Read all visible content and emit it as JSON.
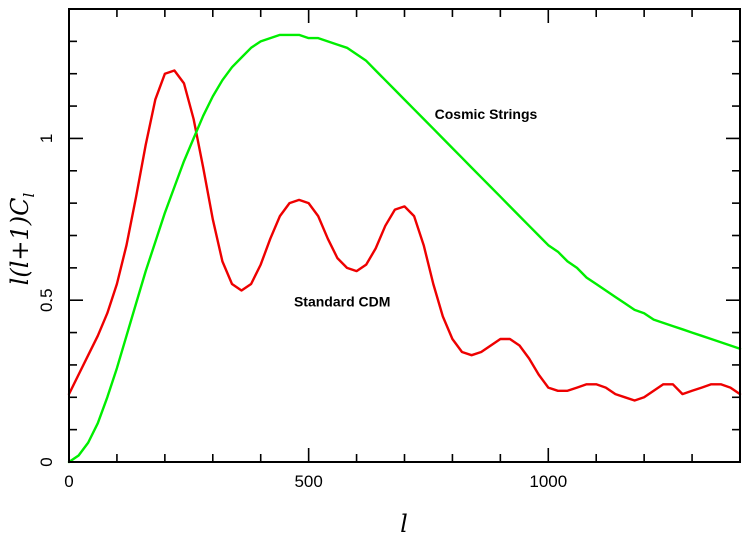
{
  "chart_data": {
    "type": "line",
    "title": "",
    "xlabel": "l",
    "ylabel": "l(l+1)C_l",
    "xlim": [
      0,
      1400
    ],
    "ylim": [
      0,
      1.4
    ],
    "x_ticks": [
      0,
      500,
      1000
    ],
    "x_tick_labels": [
      "0",
      "500",
      "1000"
    ],
    "x_minor_step": 100,
    "y_ticks": [
      0,
      0.5,
      1
    ],
    "y_tick_labels": [
      "0",
      "0.5",
      "1"
    ],
    "y_minor_step": 0.1,
    "grid": false,
    "legend": "none",
    "series": [
      {
        "color": "#ee0000",
        "x": [
          0,
          20,
          40,
          60,
          80,
          100,
          120,
          140,
          160,
          180,
          200,
          220,
          240,
          260,
          280,
          300,
          320,
          340,
          360,
          380,
          400,
          420,
          440,
          460,
          480,
          500,
          520,
          540,
          560,
          580,
          600,
          620,
          640,
          660,
          680,
          700,
          720,
          740,
          760,
          780,
          800,
          820,
          840,
          860,
          880,
          900,
          920,
          940,
          960,
          980,
          1000,
          1020,
          1040,
          1060,
          1080,
          1100,
          1120,
          1140,
          1160,
          1180,
          1200,
          1220,
          1240,
          1260,
          1280,
          1300,
          1320,
          1340,
          1360,
          1380,
          1400
        ],
        "y": [
          0.21,
          0.27,
          0.33,
          0.39,
          0.46,
          0.55,
          0.67,
          0.82,
          0.98,
          1.12,
          1.2,
          1.21,
          1.17,
          1.06,
          0.91,
          0.75,
          0.62,
          0.55,
          0.53,
          0.55,
          0.61,
          0.69,
          0.76,
          0.8,
          0.81,
          0.8,
          0.76,
          0.69,
          0.63,
          0.6,
          0.59,
          0.61,
          0.66,
          0.73,
          0.78,
          0.79,
          0.76,
          0.67,
          0.55,
          0.45,
          0.38,
          0.34,
          0.33,
          0.34,
          0.36,
          0.38,
          0.38,
          0.36,
          0.32,
          0.27,
          0.23,
          0.22,
          0.22,
          0.23,
          0.24,
          0.24,
          0.23,
          0.21,
          0.2,
          0.19,
          0.2,
          0.22,
          0.24,
          0.24,
          0.21,
          0.22,
          0.23,
          0.24,
          0.24,
          0.23,
          0.21
        ]
      },
      {
        "color": "#00ee00",
        "x": [
          0,
          20,
          40,
          60,
          80,
          100,
          120,
          140,
          160,
          180,
          200,
          220,
          240,
          260,
          280,
          300,
          320,
          340,
          360,
          380,
          400,
          420,
          440,
          460,
          480,
          500,
          520,
          540,
          560,
          580,
          600,
          620,
          640,
          660,
          680,
          700,
          720,
          740,
          760,
          780,
          800,
          820,
          840,
          860,
          880,
          900,
          920,
          940,
          960,
          980,
          1000,
          1020,
          1040,
          1060,
          1080,
          1100,
          1120,
          1140,
          1160,
          1180,
          1200,
          1220,
          1240,
          1260,
          1280,
          1300,
          1320,
          1340,
          1360,
          1380,
          1400
        ],
        "y": [
          0.0,
          0.02,
          0.06,
          0.12,
          0.2,
          0.29,
          0.39,
          0.49,
          0.59,
          0.68,
          0.77,
          0.85,
          0.93,
          1.0,
          1.07,
          1.13,
          1.18,
          1.22,
          1.25,
          1.28,
          1.3,
          1.31,
          1.32,
          1.32,
          1.32,
          1.31,
          1.31,
          1.3,
          1.29,
          1.28,
          1.26,
          1.24,
          1.21,
          1.18,
          1.15,
          1.12,
          1.09,
          1.06,
          1.03,
          1.0,
          0.97,
          0.94,
          0.91,
          0.88,
          0.85,
          0.82,
          0.79,
          0.76,
          0.73,
          0.7,
          0.67,
          0.65,
          0.62,
          0.6,
          0.57,
          0.55,
          0.53,
          0.51,
          0.49,
          0.47,
          0.46,
          0.44,
          0.43,
          0.42,
          0.41,
          0.4,
          0.39,
          0.38,
          0.37,
          0.36,
          0.35
        ]
      }
    ],
    "annotations": [
      {
        "text": "Cosmic Strings",
        "x": 870,
        "y": 1.06
      },
      {
        "text": "Standard CDM",
        "x": 570,
        "y": 0.48
      }
    ]
  }
}
